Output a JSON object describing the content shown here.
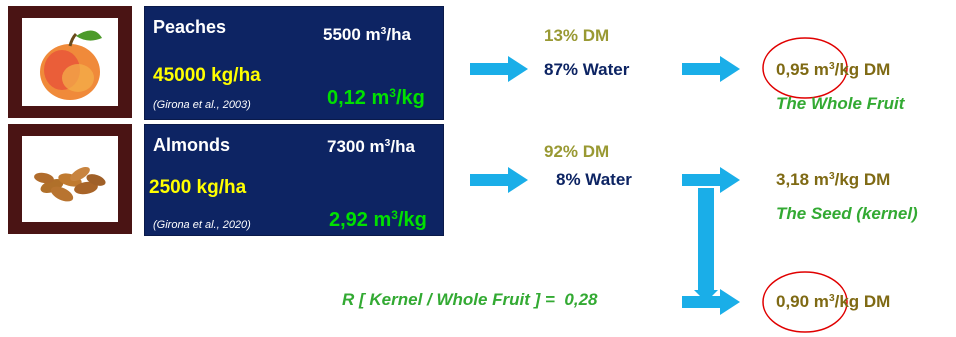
{
  "colors": {
    "arrow": "#1aaee8",
    "panel": "#0d2463",
    "circle": "#e00000"
  },
  "peaches": {
    "name": "Peaches",
    "water_use": "5500 m",
    "water_use_unit": "3",
    "water_use_suffix": "/ha",
    "yield": "45000 kg/ha",
    "citation": "(Girona et al., 2003)",
    "ratio": "0,12 m",
    "ratio_unit": "3",
    "ratio_suffix": "/kg",
    "dm": "13% DM",
    "water": "87% Water",
    "result": "0,95 m",
    "result_unit": "3",
    "result_suffix": "/kg DM",
    "result_label": "The Whole Fruit",
    "image_icon": "peach-icon"
  },
  "almonds": {
    "name": "Almonds",
    "water_use": "7300 m",
    "water_use_unit": "3",
    "water_use_suffix": "/ha",
    "yield": "2500 kg/ha",
    "citation": "(Girona et al., 2020)",
    "ratio": "2,92 m",
    "ratio_unit": "3",
    "ratio_suffix": "/kg",
    "dm": "92% DM",
    "water": "8% Water",
    "result": "3,18 m",
    "result_unit": "3",
    "result_suffix": "/kg DM",
    "result_label": "The Seed (kernel)",
    "image_icon": "almonds-icon"
  },
  "ratio_row": {
    "label": "R [ Kernel / Whole Fruit ] =  0,28",
    "result": "0,90 m",
    "result_unit": "3",
    "result_suffix": "/kg DM"
  }
}
